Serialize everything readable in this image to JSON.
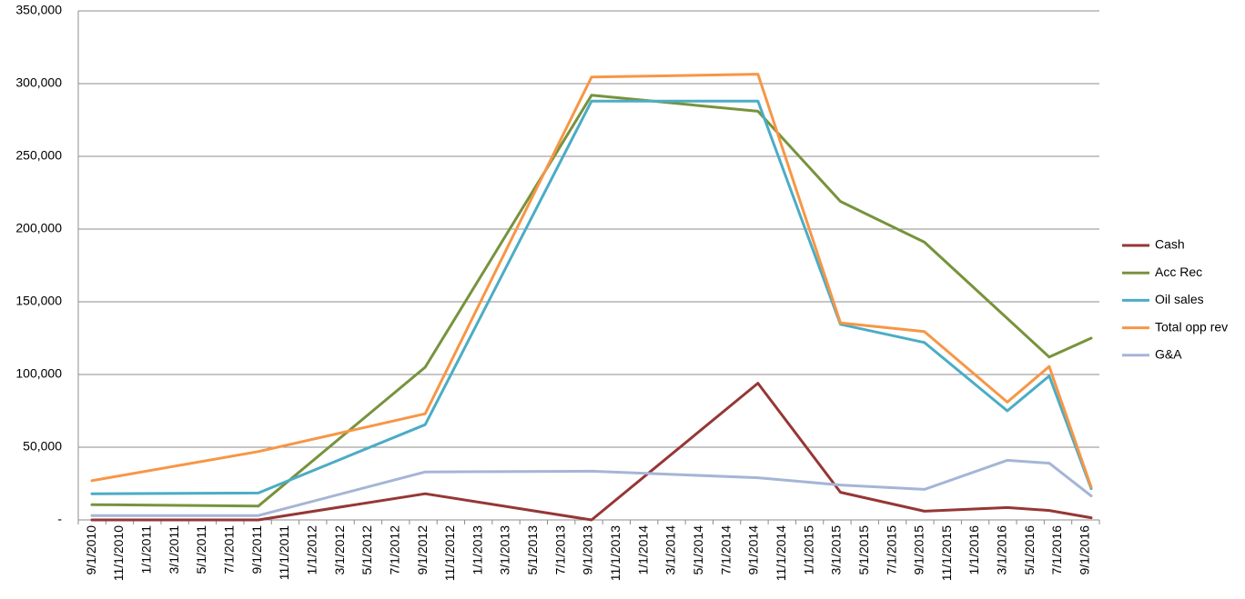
{
  "chart_data": {
    "type": "line",
    "title": "",
    "xlabel": "",
    "ylabel": "",
    "ylim": [
      0,
      350000
    ],
    "y_ticks": [
      0,
      50000,
      100000,
      150000,
      200000,
      250000,
      300000,
      350000
    ],
    "y_tick_labels": [
      "-",
      "50,000",
      "100,000",
      "150,000",
      "200,000",
      "250,000",
      "300,000",
      "350,000"
    ],
    "grid": true,
    "legend_position": "right",
    "x_categories": [
      "9/1/2010",
      "11/1/2010",
      "1/1/2011",
      "3/1/2011",
      "5/1/2011",
      "7/1/2011",
      "9/1/2011",
      "11/1/2011",
      "1/1/2012",
      "3/1/2012",
      "5/1/2012",
      "7/1/2012",
      "9/1/2012",
      "11/1/2012",
      "1/1/2013",
      "3/1/2013",
      "5/1/2013",
      "7/1/2013",
      "9/1/2013",
      "11/1/2013",
      "1/1/2014",
      "3/1/2014",
      "5/1/2014",
      "7/1/2014",
      "9/1/2014",
      "11/1/2014",
      "1/1/2015",
      "3/1/2015",
      "5/1/2015",
      "7/1/2015",
      "9/1/2015",
      "11/1/2015",
      "1/1/2016",
      "3/1/2016",
      "5/1/2016",
      "7/1/2016",
      "9/1/2016"
    ],
    "series": [
      {
        "name": "Cash",
        "color": "#953735",
        "points": [
          {
            "x": "9/1/2010",
            "y": 0
          },
          {
            "x": "9/1/2011",
            "y": 0
          },
          {
            "x": "9/1/2012",
            "y": 18000
          },
          {
            "x": "9/1/2013",
            "y": 0
          },
          {
            "x": "9/1/2014",
            "y": 94000
          },
          {
            "x": "3/1/2015",
            "y": 19000
          },
          {
            "x": "9/1/2015",
            "y": 6000
          },
          {
            "x": "3/1/2016",
            "y": 8500
          },
          {
            "x": "6/1/2016",
            "y": 6500
          },
          {
            "x": "9/1/2016",
            "y": 1500
          }
        ]
      },
      {
        "name": "Acc Rec",
        "color": "#77933c",
        "points": [
          {
            "x": "9/1/2010",
            "y": 10500
          },
          {
            "x": "9/1/2011",
            "y": 9500
          },
          {
            "x": "9/1/2012",
            "y": 105000
          },
          {
            "x": "9/1/2013",
            "y": 292000
          },
          {
            "x": "9/1/2014",
            "y": 281000
          },
          {
            "x": "3/1/2015",
            "y": 219000
          },
          {
            "x": "9/1/2015",
            "y": 191000
          },
          {
            "x": "6/1/2016",
            "y": 112000
          },
          {
            "x": "9/1/2016",
            "y": 125000
          }
        ]
      },
      {
        "name": "Oil sales",
        "color": "#4bacc6",
        "points": [
          {
            "x": "9/1/2010",
            "y": 18000
          },
          {
            "x": "9/1/2011",
            "y": 18500
          },
          {
            "x": "9/1/2012",
            "y": 65500
          },
          {
            "x": "9/1/2013",
            "y": 288000
          },
          {
            "x": "9/1/2014",
            "y": 288000
          },
          {
            "x": "3/1/2015",
            "y": 134500
          },
          {
            "x": "9/1/2015",
            "y": 122000
          },
          {
            "x": "3/1/2016",
            "y": 75000
          },
          {
            "x": "6/1/2016",
            "y": 99000
          },
          {
            "x": "9/1/2016",
            "y": 21500
          }
        ]
      },
      {
        "name": "Total opp rev",
        "color": "#f79646",
        "points": [
          {
            "x": "9/1/2010",
            "y": 27000
          },
          {
            "x": "9/1/2011",
            "y": 47000
          },
          {
            "x": "9/1/2012",
            "y": 73000
          },
          {
            "x": "9/1/2013",
            "y": 304500
          },
          {
            "x": "9/1/2014",
            "y": 306500
          },
          {
            "x": "3/1/2015",
            "y": 135500
          },
          {
            "x": "9/1/2015",
            "y": 129500
          },
          {
            "x": "3/1/2016",
            "y": 81000
          },
          {
            "x": "6/1/2016",
            "y": 105500
          },
          {
            "x": "9/1/2016",
            "y": 22500
          }
        ]
      },
      {
        "name": "G&A",
        "color": "#a5b5d6",
        "points": [
          {
            "x": "9/1/2010",
            "y": 3000
          },
          {
            "x": "9/1/2011",
            "y": 3000
          },
          {
            "x": "9/1/2012",
            "y": 33000
          },
          {
            "x": "9/1/2013",
            "y": 33500
          },
          {
            "x": "9/1/2014",
            "y": 29000
          },
          {
            "x": "3/1/2015",
            "y": 24000
          },
          {
            "x": "9/1/2015",
            "y": 21000
          },
          {
            "x": "3/1/2016",
            "y": 41000
          },
          {
            "x": "6/1/2016",
            "y": 39000
          },
          {
            "x": "9/1/2016",
            "y": 16500
          }
        ]
      }
    ]
  }
}
